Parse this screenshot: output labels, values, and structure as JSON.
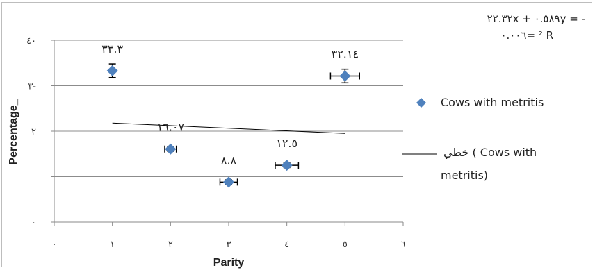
{
  "chart_data": {
    "type": "scatter",
    "xlabel": "Parity",
    "ylabel": "Percentage_",
    "xlim": [
      0,
      6
    ],
    "ylim": [
      0,
      40
    ],
    "x_ticks": [
      "٠",
      "١",
      "٢",
      "٣",
      "٤",
      "٥",
      "٦"
    ],
    "y_ticks": [
      "٠",
      "",
      "",
      "",
      "٤٠"
    ],
    "y_tick_values": [
      0,
      10,
      20,
      30,
      40
    ],
    "grid": "horizontal",
    "series": [
      {
        "name": "Cows with metritis",
        "color": "#4f81bd",
        "marker": "diamond",
        "points": [
          {
            "x": 1,
            "y": 33.3,
            "label": "٣٣.٣",
            "xerr": 0,
            "yerr": 1.5
          },
          {
            "x": 2,
            "y": 16.07,
            "label": "١٦.٠٧",
            "xerr": 0.1,
            "yerr": 0.5
          },
          {
            "x": 3,
            "y": 8.8,
            "label": "٨.٨",
            "xerr": 0.15,
            "yerr": 0.5
          },
          {
            "x": 4,
            "y": 12.5,
            "label": "١٢.٥",
            "xerr": 0.2,
            "yerr": 0.5
          },
          {
            "x": 5,
            "y": 32.14,
            "label": "٣٢.١٤",
            "xerr": 0.25,
            "yerr": 1.5
          }
        ]
      }
    ],
    "trendline": {
      "x_start": 1,
      "y_start": 21.8,
      "x_end": 5,
      "y_end": 19.5,
      "color": "#000000"
    },
    "legend": {
      "position": "right",
      "marker_label": "Cows with metritis",
      "line_label_1": "خطي ( Cows with",
      "line_label_2": "metritis)"
    },
    "equation": {
      "line1": "٢٢.٣٢x + ٠.٥٨٩y = -",
      "line2": "٠.٠٠٦= ² R"
    },
    "y_extra_tick_labels": {
      "at30": "٣-",
      "at20": "٢"
    }
  }
}
